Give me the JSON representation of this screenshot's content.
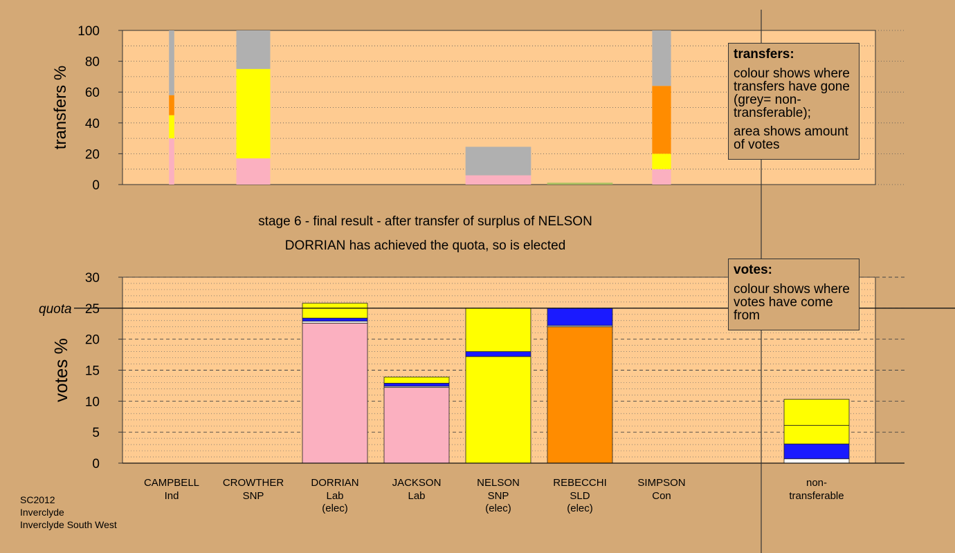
{
  "stage_line": "stage 6 - final result - after transfer of surplus of NELSON",
  "elected_line": "DORRIAN has achieved the quota, so is elected",
  "legend_transfers": {
    "title": "transfers:",
    "text1": "colour shows where transfers have gone (grey= non-transferable);",
    "text2": "area shows amount of votes"
  },
  "legend_votes": {
    "title": "votes:",
    "text1": "colour shows where votes have come from"
  },
  "footer": {
    "line1": "SC2012",
    "line2": "Inverclyde",
    "line3": "Inverclyde South West"
  },
  "colors": {
    "background": "#d4a976",
    "plot": "#fecb91",
    "DORRIAN": "#fbb0c0",
    "NELSON": "#ffff00",
    "JACKSON": "#1a1aff",
    "REBECCHI": "#ff8c00",
    "CROWTHER": "#ffffff",
    "nontransferable": "#b0b0b0"
  },
  "chart_data": [
    {
      "type": "bar",
      "stacked": true,
      "ylabel": "transfers %",
      "ylim": [
        0,
        100
      ],
      "yticks": [
        0,
        20,
        40,
        60,
        80,
        100
      ],
      "categories": [
        "CAMPBELL",
        "CROWTHER",
        "DORRIAN",
        "JACKSON",
        "NELSON",
        "REBECCHI",
        "SIMPSON"
      ],
      "bars": [
        {
          "candidate": "CAMPBELL",
          "width_pct": 0.7,
          "segments": [
            {
              "color": "#fbb0c0",
              "value": 30
            },
            {
              "color": "#ffff00",
              "value": 15
            },
            {
              "color": "#ff8c00",
              "value": 13
            },
            {
              "color": "#b0b0b0",
              "value": 42
            }
          ]
        },
        {
          "candidate": "CROWTHER",
          "width_pct": 4.5,
          "segments": [
            {
              "color": "#fbb0c0",
              "value": 17
            },
            {
              "color": "#ffff00",
              "value": 58
            },
            {
              "color": "#b0b0b0",
              "value": 25
            }
          ]
        },
        {
          "candidate": "NELSON",
          "width_pct": 8.7,
          "segments": [
            {
              "color": "#fbb0c0",
              "value": 6
            },
            {
              "color": "#b0b0b0",
              "value": 18.5
            }
          ]
        },
        {
          "candidate": "REBECCHI",
          "width_pct": 8.7,
          "segments": [
            {
              "color": "#a8c060",
              "value": 1.2
            }
          ]
        },
        {
          "candidate": "SIMPSON",
          "width_pct": 2.5,
          "segments": [
            {
              "color": "#fbb0c0",
              "value": 10
            },
            {
              "color": "#ffff00",
              "value": 10
            },
            {
              "color": "#ff8c00",
              "value": 44
            },
            {
              "color": "#b0b0b0",
              "value": 36
            }
          ]
        }
      ]
    },
    {
      "type": "bar",
      "stacked": true,
      "ylabel": "votes %",
      "ylim": [
        0,
        30
      ],
      "yticks": [
        0,
        5,
        10,
        15,
        20,
        25,
        30
      ],
      "quota": 25,
      "quota_label": "quota",
      "categories": [
        {
          "name": "CAMPBELL",
          "party": "Ind",
          "status": ""
        },
        {
          "name": "CROWTHER",
          "party": "SNP",
          "status": ""
        },
        {
          "name": "DORRIAN",
          "party": "Lab",
          "status": "(elec)"
        },
        {
          "name": "JACKSON",
          "party": "Lab",
          "status": ""
        },
        {
          "name": "NELSON",
          "party": "SNP",
          "status": "(elec)"
        },
        {
          "name": "REBECCHI",
          "party": "SLD",
          "status": "(elec)"
        },
        {
          "name": "SIMPSON",
          "party": "Con",
          "status": ""
        }
      ],
      "nontransferable_label": "non-transferable",
      "bars": [
        {
          "candidate": "CAMPBELL",
          "segments": []
        },
        {
          "candidate": "CROWTHER",
          "segments": []
        },
        {
          "candidate": "DORRIAN",
          "segments": [
            {
              "color": "#fbb0c0",
              "value": 22.6
            },
            {
              "color": "#ffffff",
              "value": 0.3
            },
            {
              "color": "#1a1aff",
              "value": 0.5
            },
            {
              "color": "#ffff00",
              "value": 2.4
            }
          ]
        },
        {
          "candidate": "JACKSON",
          "segments": [
            {
              "color": "#fbb0c0",
              "value": 12.2
            },
            {
              "color": "#ffffff",
              "value": 0.2
            },
            {
              "color": "#1a1aff",
              "value": 0.5
            },
            {
              "color": "#ffff00",
              "value": 1.0
            }
          ]
        },
        {
          "candidate": "NELSON",
          "segments": [
            {
              "color": "#ffff00",
              "value": 17.2
            },
            {
              "color": "#1a1aff",
              "value": 0.8
            },
            {
              "color": "#ffff00",
              "value": 7.0
            }
          ]
        },
        {
          "candidate": "REBECCHI",
          "segments": [
            {
              "color": "#ff8c00",
              "value": 22.0
            },
            {
              "color": "#ffffff",
              "value": 0.2
            },
            {
              "color": "#1a1aff",
              "value": 2.8
            }
          ]
        },
        {
          "candidate": "SIMPSON",
          "segments": []
        },
        {
          "candidate": "non-transferable",
          "segments": [
            {
              "color": "#ffffff",
              "value": 0.7
            },
            {
              "color": "#1a1aff",
              "value": 2.4
            },
            {
              "color": "#ffff00",
              "value": 3.0
            },
            {
              "color": "#ffff00",
              "value": 4.2
            }
          ]
        }
      ]
    }
  ]
}
